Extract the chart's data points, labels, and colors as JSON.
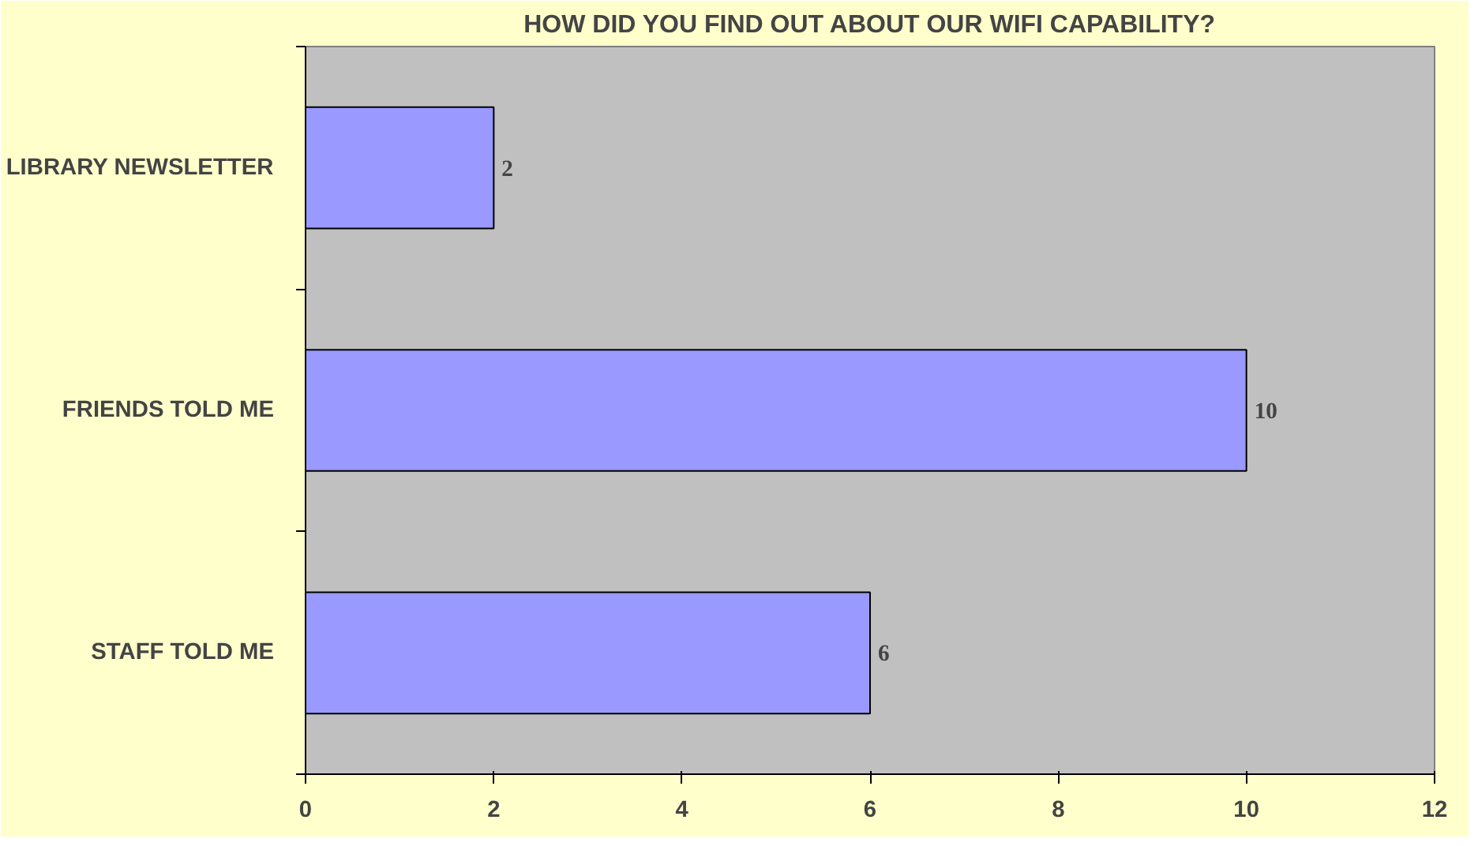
{
  "chart_data": {
    "type": "bar",
    "orientation": "horizontal",
    "title": "HOW DID YOU FIND OUT ABOUT OUR WIFI CAPABILITY?",
    "categories": [
      "LIBRARY NEWSLETTER",
      "FRIENDS TOLD ME",
      "STAFF TOLD ME"
    ],
    "values": [
      2,
      10,
      6
    ],
    "color": "#9999ff",
    "xlim": [
      0,
      12
    ],
    "xticks": [
      0,
      2,
      4,
      6,
      8,
      10,
      12
    ],
    "grid": false,
    "data_labels": true
  }
}
